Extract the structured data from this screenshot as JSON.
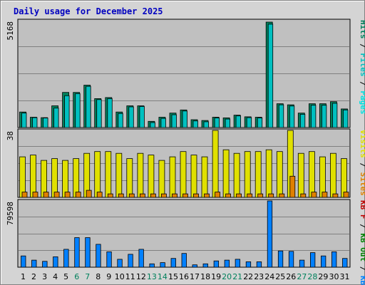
{
  "colors": {
    "frame_bg": "#d4d4d4",
    "plot_bg": "#c0c0c0",
    "grid": "#808080",
    "title": "#0000c0",
    "hits": "#00805c",
    "files": "#00c0c0",
    "pages": "#00e0e0",
    "visits": "#e0e000",
    "sites": "#e08000",
    "kb_in": "#0080ff",
    "kb_out": "#008000",
    "kb_f": "#c00000",
    "weekday": "#000000",
    "weekend": "#00805c"
  },
  "chart_data": {
    "title": "Daily usage for December 2025",
    "type": "bar",
    "categories": [
      "1",
      "2",
      "3",
      "4",
      "5",
      "6",
      "7",
      "8",
      "9",
      "10",
      "11",
      "12",
      "13",
      "14",
      "15",
      "16",
      "17",
      "18",
      "19",
      "20",
      "21",
      "22",
      "23",
      "24",
      "25",
      "26",
      "27",
      "28",
      "29",
      "30",
      "31"
    ],
    "weekend_days": [
      "6",
      "7",
      "13",
      "14",
      "20",
      "21",
      "27",
      "28"
    ],
    "panels": [
      {
        "name": "top",
        "ymax_label": "5168",
        "ymax": 5168,
        "right_labels": [
          {
            "text": "Hits",
            "color": "#00805c"
          },
          {
            "text": " / ",
            "color": "#000000"
          },
          {
            "text": "Files",
            "color": "#00c0c0"
          },
          {
            "text": " / ",
            "color": "#000000"
          },
          {
            "text": "Pages",
            "color": "#00e0e0"
          }
        ],
        "series": [
          {
            "name": "Hits",
            "values": [
              750,
              500,
              480,
              1050,
              1700,
              1700,
              2050,
              1400,
              1450,
              750,
              1050,
              1050,
              300,
              500,
              700,
              850,
              380,
              340,
              500,
              470,
              600,
              520,
              500,
              5100,
              1150,
              1100,
              700,
              1150,
              1150,
              1250,
              900
            ]
          },
          {
            "name": "Files",
            "values": [
              700,
              480,
              460,
              940,
              1540,
              1640,
              1990,
              1350,
              1400,
              680,
              1000,
              1020,
              240,
              440,
              620,
              800,
              320,
              280,
              460,
              410,
              560,
              480,
              460,
              5000,
              1100,
              1040,
              640,
              1080,
              1080,
              1170,
              850
            ]
          }
        ]
      },
      {
        "name": "middle",
        "ymax_label": "38",
        "ymax": 38,
        "right_labels": [
          {
            "text": "Visits",
            "color": "#e0e000"
          },
          {
            "text": " / ",
            "color": "#000000"
          },
          {
            "text": "Sites",
            "color": "#e08000"
          }
        ],
        "series": [
          {
            "name": "Visits",
            "values": [
              23,
              24,
              21,
              22,
              21,
              22,
              25,
              26,
              26,
              25,
              22,
              25,
              24,
              21,
              23,
              26,
              24,
              23,
              38,
              27,
              25,
              26,
              26,
              27,
              26,
              38,
              25,
              26,
              23,
              25,
              22
            ]
          },
          {
            "name": "Sites",
            "values": [
              3,
              3,
              3,
              3,
              3,
              3,
              4,
              3,
              2,
              2,
              2,
              2,
              2,
              2,
              2,
              2,
              2,
              2,
              3,
              2,
              2,
              2,
              2,
              2,
              2,
              12,
              2,
              3,
              3,
              2,
              3
            ]
          }
        ]
      },
      {
        "name": "bottom",
        "ymax_label": "79598",
        "ymax": 79598,
        "right_labels": [
          {
            "text": "KB F",
            "color": "#c00000"
          },
          {
            "text": " / ",
            "color": "#000000"
          },
          {
            "text": "KB Out",
            "color": "#008000"
          },
          {
            "text": " / ",
            "color": "#000000"
          },
          {
            "text": "KB In",
            "color": "#0080ff"
          }
        ],
        "series": [
          {
            "name": "KB In",
            "values": [
              13500,
              8500,
              7000,
              12500,
              21500,
              35500,
              35500,
              27500,
              18500,
              9500,
              15500,
              21500,
              4000,
              5500,
              10500,
              16500,
              2800,
              4000,
              7500,
              8500,
              9500,
              6500,
              6500,
              79598,
              19500,
              19000,
              8500,
              17500,
              13500,
              18500,
              10500
            ]
          }
        ]
      }
    ]
  }
}
